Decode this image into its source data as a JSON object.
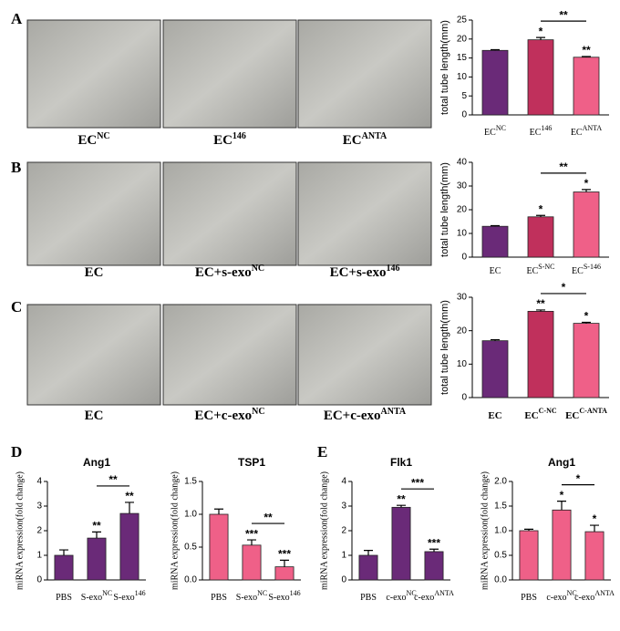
{
  "panel_letters": [
    "A",
    "B",
    "C",
    "D",
    "E"
  ],
  "image_labels": [
    [
      {
        "text": "EC",
        "sup": "NC"
      },
      {
        "text": "EC",
        "sup": "146"
      },
      {
        "text": "EC",
        "sup": "ANTA"
      }
    ],
    [
      {
        "text": "EC",
        "sup": null
      },
      {
        "text": "EC+s-exo",
        "sup": "NC"
      },
      {
        "text": "EC+s-exo",
        "sup": "146"
      }
    ],
    [
      {
        "text": "EC",
        "sup": null
      },
      {
        "text": "EC+c-exo",
        "sup": "NC"
      },
      {
        "text": "EC+c-exo",
        "sup": "ANTA"
      }
    ]
  ],
  "chart_data": [
    {
      "type": "bar",
      "y_label": "total tube length(mm)",
      "categories": [
        "EC",
        "EC",
        "EC"
      ],
      "category_sups": [
        "NC",
        "146",
        "ANTA"
      ],
      "values": [
        17,
        19.8,
        15.2
      ],
      "errors": [
        0.2,
        0.6,
        0.2
      ],
      "colors": [
        "#6a2a78",
        "#c0305c",
        "#ef6088"
      ],
      "ylim": [
        0,
        25
      ],
      "yticks": [
        0,
        5,
        10,
        15,
        20,
        25
      ],
      "stars": [
        null,
        "*",
        "**"
      ],
      "brackets": [
        {
          "from": 1,
          "to": 2,
          "label": "**"
        }
      ]
    },
    {
      "type": "bar",
      "y_label": "total tube length(mm)",
      "categories": [
        "EC",
        "EC",
        "EC"
      ],
      "category_sups": [
        null,
        "S-NC",
        "S-146"
      ],
      "values": [
        13,
        17,
        27.5
      ],
      "errors": [
        0.3,
        0.6,
        1.0
      ],
      "colors": [
        "#6a2a78",
        "#c0305c",
        "#ef6088"
      ],
      "ylim": [
        0,
        40
      ],
      "yticks": [
        0,
        10,
        20,
        30,
        40
      ],
      "stars": [
        null,
        "*",
        "*"
      ],
      "brackets": [
        {
          "from": 1,
          "to": 2,
          "label": "**"
        }
      ]
    },
    {
      "type": "bar",
      "y_label": "total tube length(mm)",
      "categories": [
        "EC",
        "EC",
        "EC"
      ],
      "category_sups": [
        null,
        "C-NC",
        "C-ANTA"
      ],
      "values": [
        17,
        25.8,
        22.2
      ],
      "errors": [
        0.3,
        0.4,
        0.3
      ],
      "colors": [
        "#6a2a78",
        "#c0305c",
        "#ef6088"
      ],
      "ylim": [
        0,
        30
      ],
      "yticks": [
        0,
        10,
        20,
        30
      ],
      "stars": [
        null,
        "**",
        "*"
      ],
      "brackets": [
        {
          "from": 1,
          "to": 2,
          "label": "*"
        }
      ]
    },
    {
      "type": "bar",
      "title": "Ang1",
      "y_label": "miRNA expression(fold change)",
      "categories": [
        "PBS",
        "S-exo",
        "S-exo"
      ],
      "category_sups": [
        null,
        "NC",
        "146"
      ],
      "values": [
        1,
        1.7,
        2.7
      ],
      "errors": [
        0.22,
        0.25,
        0.45
      ],
      "colors": [
        "#6a2a78",
        "#6a2a78",
        "#6a2a78"
      ],
      "ylim": [
        0,
        4
      ],
      "yticks": [
        0,
        1,
        2,
        3,
        4
      ],
      "stars": [
        null,
        "**",
        "**"
      ],
      "brackets": [
        {
          "from": 1,
          "to": 2,
          "label": "**"
        }
      ]
    },
    {
      "type": "bar",
      "title": "TSP1",
      "y_label": "miRNA expression(fold change)",
      "categories": [
        "PBS",
        "S-exo",
        "S-exo"
      ],
      "category_sups": [
        null,
        "NC",
        "146"
      ],
      "values": [
        1.0,
        0.53,
        0.2
      ],
      "errors": [
        0.08,
        0.08,
        0.1
      ],
      "colors": [
        "#ef6088",
        "#ef6088",
        "#ef6088"
      ],
      "ylim": [
        0,
        1.5
      ],
      "yticks": [
        {
          "value": 0,
          "label": "0.0"
        },
        0.5,
        {
          "value": 1,
          "label": "1.0"
        },
        1.5
      ],
      "stars": [
        null,
        "***",
        "***"
      ],
      "brackets": [
        {
          "from": 1,
          "to": 2,
          "label": "**"
        }
      ]
    },
    {
      "type": "bar",
      "title": "Flk1",
      "y_label": "miRNA expression(fold change)",
      "categories": [
        "PBS",
        "c-exo",
        "c-exo"
      ],
      "category_sups": [
        null,
        "NC",
        "ANTA"
      ],
      "values": [
        1,
        2.95,
        1.15
      ],
      "errors": [
        0.2,
        0.08,
        0.1
      ],
      "colors": [
        "#6a2a78",
        "#6a2a78",
        "#6a2a78"
      ],
      "ylim": [
        0,
        4
      ],
      "yticks": [
        0,
        1,
        2,
        3,
        4
      ],
      "stars": [
        null,
        "**",
        "***"
      ],
      "brackets": [
        {
          "from": 1,
          "to": 2,
          "label": "***"
        }
      ]
    },
    {
      "type": "bar",
      "title": "Ang1",
      "y_label": "miRNA expression(fold change)",
      "categories": [
        "PBS",
        "c-exo",
        "c-exo"
      ],
      "category_sups": [
        null,
        "NC",
        "ANTA"
      ],
      "values": [
        1.0,
        1.42,
        0.98
      ],
      "errors": [
        0.03,
        0.18,
        0.13
      ],
      "colors": [
        "#ef6088",
        "#ef6088",
        "#ef6088"
      ],
      "ylim": [
        0,
        2
      ],
      "yticks": [
        {
          "value": 0,
          "label": "0.0"
        },
        0.5,
        {
          "value": 1,
          "label": "1.0"
        },
        1.5,
        {
          "value": 2,
          "label": "2.0"
        }
      ],
      "stars": [
        null,
        "*",
        "*"
      ],
      "brackets": [
        {
          "from": 1,
          "to": 2,
          "label": "*"
        }
      ]
    }
  ]
}
